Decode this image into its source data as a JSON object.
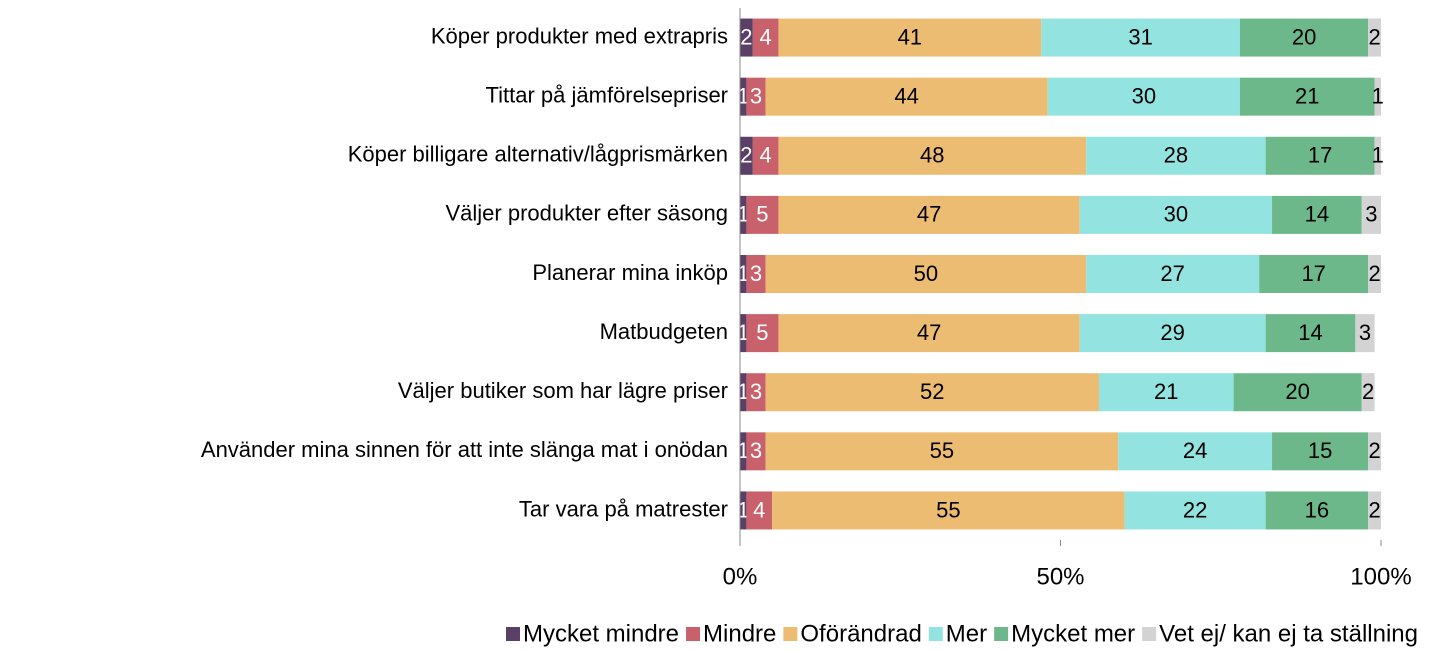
{
  "chart_data": {
    "type": "stacked_barh",
    "categories": [
      "Köper produkter med extrapris",
      "Tittar på jämförelsepriser",
      "Köper billigare alternativ/lågprismärken",
      "Väljer produkter efter säsong",
      "Planerar mina inköp",
      "Matbudgeten",
      "Väljer butiker som har lägre priser",
      "Använder mina sinnen för att inte slänga mat i onödan",
      "Tar vara på matrester"
    ],
    "series": [
      {
        "name": "Mycket mindre",
        "color": "#5a3f66",
        "values": [
          2,
          1,
          2,
          1,
          1,
          1,
          1,
          1,
          1
        ]
      },
      {
        "name": "Mindre",
        "color": "#c8616b",
        "values": [
          4,
          3,
          4,
          5,
          3,
          5,
          3,
          3,
          4
        ]
      },
      {
        "name": "Oförändrad",
        "color": "#ecbc72",
        "values": [
          41,
          44,
          48,
          47,
          50,
          47,
          52,
          55,
          55
        ]
      },
      {
        "name": "Mer",
        "color": "#93e3e0",
        "values": [
          31,
          30,
          28,
          30,
          27,
          29,
          21,
          24,
          22
        ]
      },
      {
        "name": "Mycket mer",
        "color": "#6db88a",
        "values": [
          20,
          21,
          17,
          14,
          17,
          14,
          20,
          15,
          16
        ]
      },
      {
        "name": "Vet ej/ kan ej ta ställning",
        "color": "#d3d3d3",
        "values": [
          2,
          1,
          1,
          3,
          2,
          3,
          2,
          2,
          2
        ]
      }
    ],
    "xlim": [
      0,
      100
    ],
    "xticks": [
      {
        "value": 0,
        "label": "0%"
      },
      {
        "value": 50,
        "label": "50%"
      },
      {
        "value": 100,
        "label": "100%"
      }
    ],
    "legend": "bottom"
  }
}
